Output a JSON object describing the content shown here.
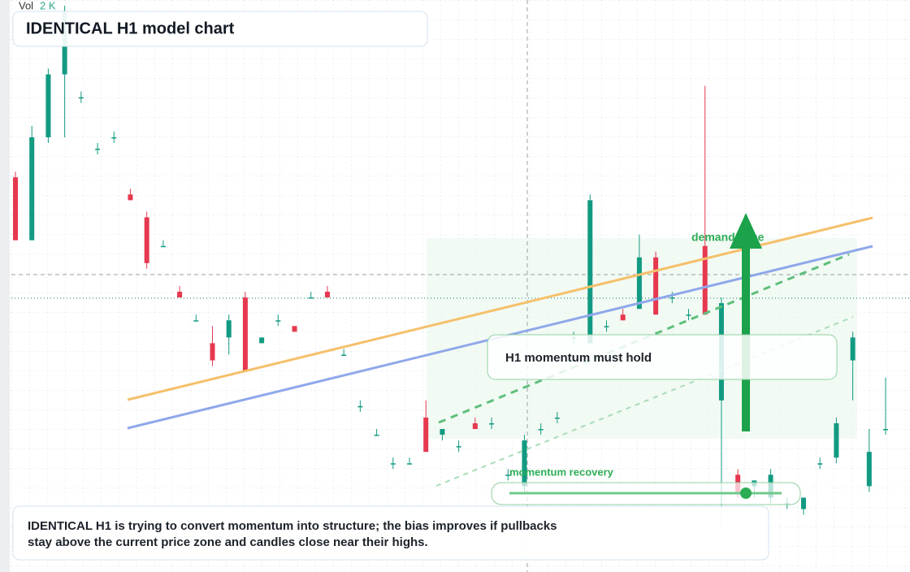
{
  "chart_data": {
    "type": "candlestick",
    "title": "IDENTICAL H1 model chart",
    "volume_label": "Vol",
    "volume_value": "2 K",
    "zone_label": "demand zone",
    "callout": "H1 momentum must hold",
    "slider_label": "momentum recovery",
    "description": [
      "IDENTICAL H1 is trying to convert momentum into structure; the bias improves if pullbacks",
      "stay above the current price zone and candles close near their highs."
    ],
    "up_color": "#129a82",
    "down_color": "#e63950",
    "ylim": [
      0,
      100
    ],
    "open": [
      69,
      58,
      76,
      87,
      83,
      74,
      76,
      66,
      62,
      57,
      49,
      44,
      40,
      41,
      48,
      40,
      44,
      43,
      48,
      49,
      38,
      29,
      24,
      19,
      19,
      27,
      24,
      22,
      26,
      26,
      17,
      15,
      25,
      27,
      41,
      40,
      43,
      45,
      46,
      55,
      48,
      45,
      57,
      30,
      17,
      15,
      13,
      12,
      11,
      19,
      20,
      37,
      15,
      25
    ],
    "high": [
      70,
      78,
      88,
      99,
      84,
      75,
      77,
      67,
      63,
      58,
      50,
      45,
      43,
      45,
      49,
      41,
      45,
      43,
      49,
      50,
      39,
      30,
      25,
      20,
      20,
      30,
      25,
      23,
      27,
      27,
      18,
      24,
      26,
      28,
      42,
      66,
      44,
      46,
      59,
      56,
      49,
      46,
      85,
      48,
      18,
      16,
      18,
      13,
      12,
      20,
      27,
      42,
      25,
      34
    ],
    "low": [
      58,
      58,
      75,
      76,
      82,
      73,
      75,
      65,
      53,
      57,
      48,
      44,
      36,
      38,
      35,
      40,
      43,
      42,
      48,
      48,
      38,
      28,
      24,
      18,
      19,
      21,
      23,
      21,
      25,
      25,
      16,
      14,
      24,
      26,
      40,
      40,
      42,
      44,
      46,
      45,
      47,
      44,
      45,
      8,
      13,
      13,
      12,
      11,
      10,
      18,
      19,
      30,
      14,
      24
    ],
    "close": [
      58,
      76,
      87,
      98,
      83,
      74,
      76,
      65,
      54,
      57,
      48,
      44,
      37,
      44,
      35,
      41,
      44,
      42,
      48,
      48,
      38,
      29,
      24,
      19,
      19,
      21,
      25,
      22,
      25,
      26,
      17,
      23,
      25,
      27,
      41,
      65,
      43,
      44,
      55,
      45,
      48,
      45,
      45,
      47,
      14,
      16,
      17,
      12,
      13,
      19,
      26,
      41,
      21,
      25
    ]
  }
}
